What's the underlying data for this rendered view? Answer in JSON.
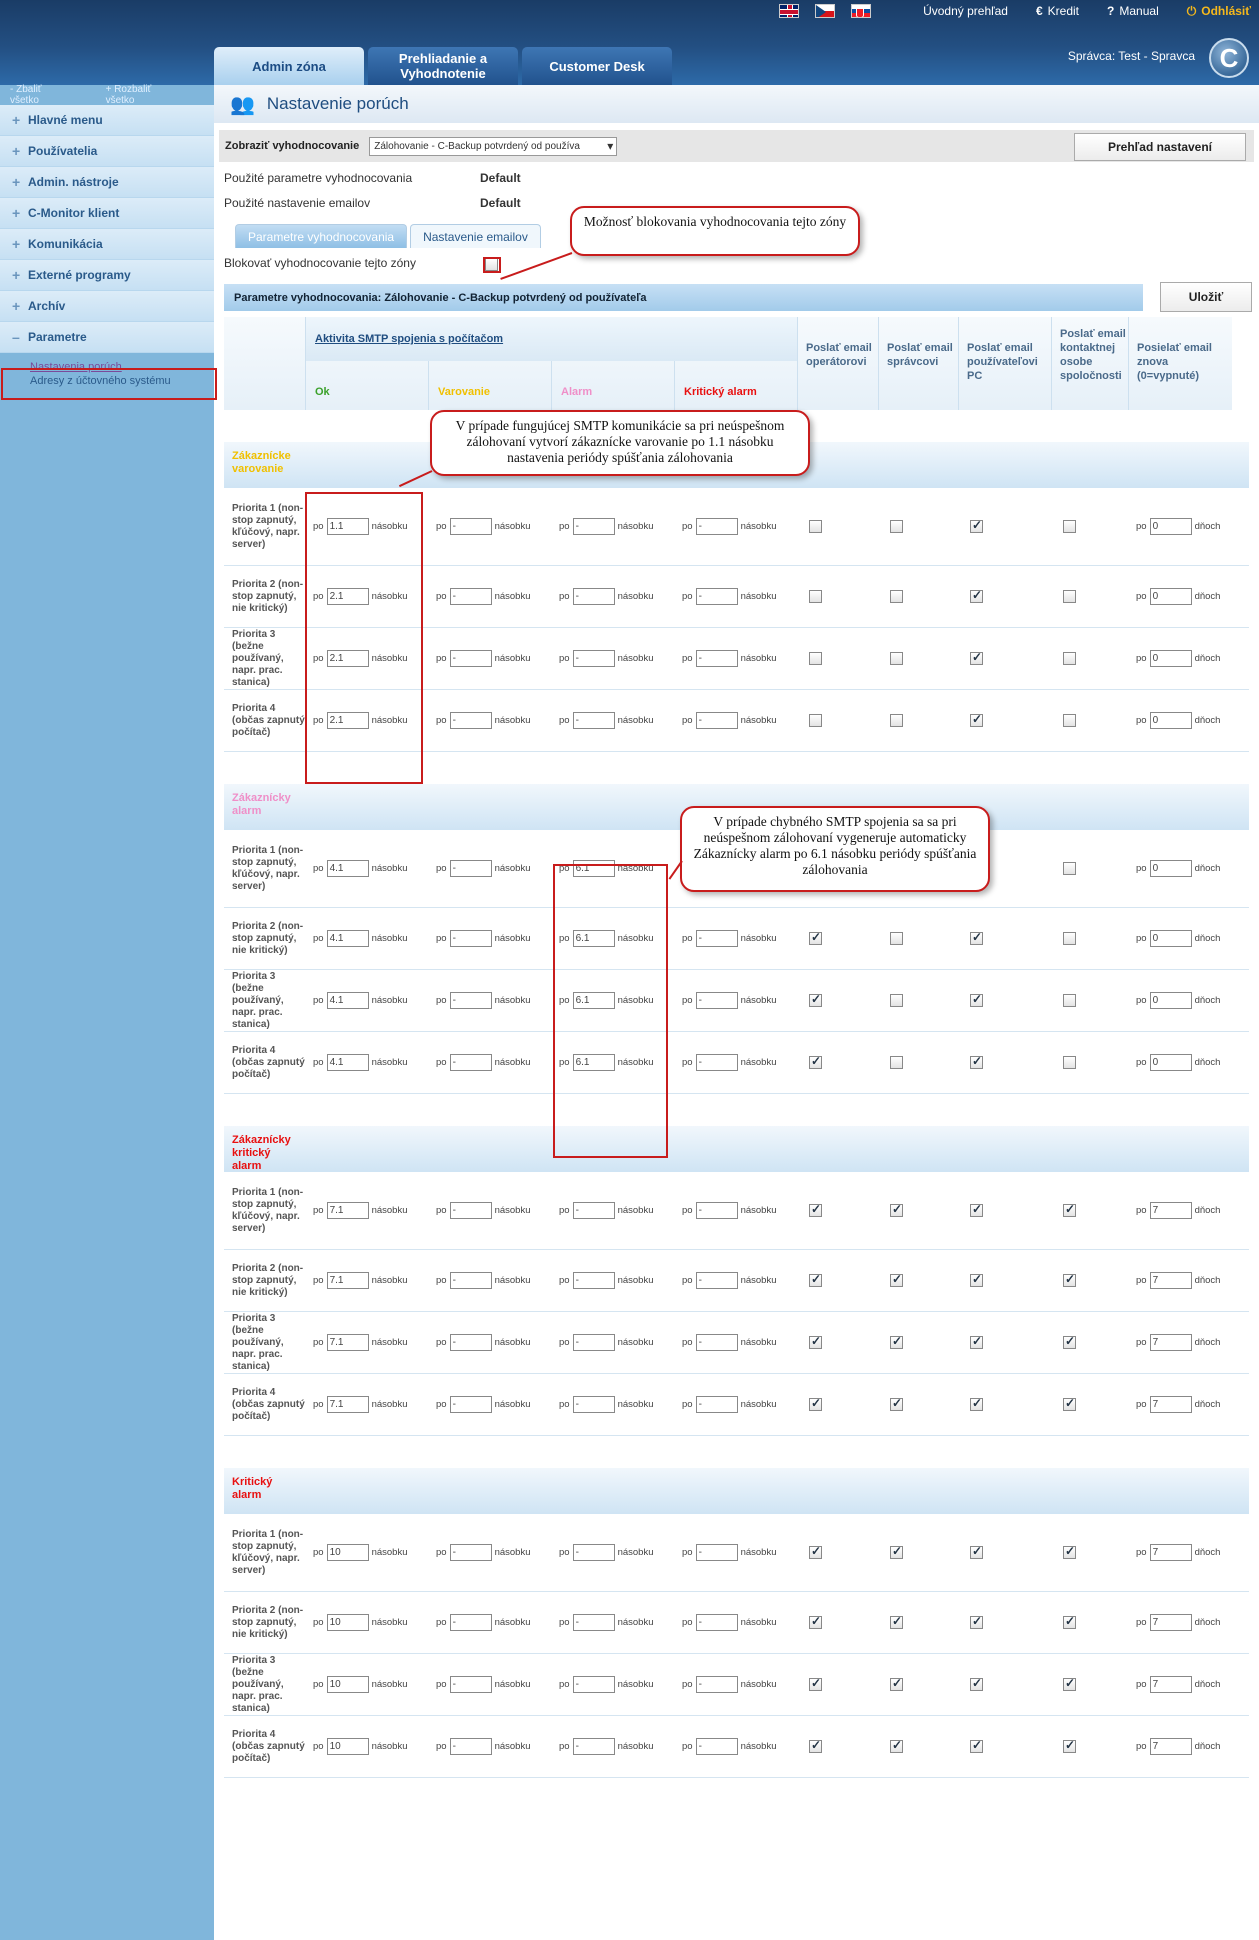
{
  "header": {
    "nav": {
      "home": "Úvodný prehľad",
      "credit": "Kredit",
      "manual": "Manual",
      "logout": "Odhlásiť"
    },
    "tabs": [
      "Admin zóna",
      "Prehliadanie a Vyhodnotenie",
      "Customer Desk"
    ],
    "user": "Správca: Test - Spravca",
    "logo": "C"
  },
  "sidebar": {
    "collapse_all": "Zbaliť všetko",
    "expand_all": "Rozbaliť všetko",
    "items": [
      "Hlavné menu",
      "Používatelia",
      "Admin. nástroje",
      "C-Monitor klient",
      "Komunikácia",
      "Externé programy",
      "Archív",
      "Parametre"
    ],
    "sub": [
      "Nastavenia porúch",
      "Adresy z účtovného systému"
    ]
  },
  "page": {
    "title": "Nastavenie porúch",
    "filter_label": "Zobraziť vyhodnocovanie",
    "filter_value": "Zálohovanie - C-Backup potvrdený od používa",
    "overview_button": "Prehľad nastavení",
    "used_params_label": "Použité parametre vyhodnocovania",
    "used_params_value": "Default",
    "used_email_label": "Použité nastavenie emailov",
    "used_email_value": "Default",
    "subtabs": [
      "Parametre vyhodnocovania",
      "Nastavenie emailov"
    ],
    "block_label": "Blokovať vyhodnocovanie tejto zóny",
    "param_bar": "Parametre vyhodnocovania: Zálohovanie - C-Backup potvrdený od používateľa",
    "save_button": "Uložiť"
  },
  "table": {
    "smtp_title": "Aktivita SMTP spojenia s počítačom",
    "states": [
      {
        "label": "Ok",
        "color": "#3aa12a"
      },
      {
        "label": "Varovanie",
        "color": "#f0c000"
      },
      {
        "label": "Alarm",
        "color": "#ef8fc8"
      },
      {
        "label": "Kritický alarm",
        "color": "#e81010"
      }
    ],
    "mail_cols": [
      "Poslať email operátorovi",
      "Poslať email správcovi",
      "Poslať email používateľovi PC",
      "Poslať email kontaktnej osobe spoločnosti",
      "Posielať email znova (0=vypnuté)"
    ],
    "po": "po",
    "nasobku": "násobku",
    "dnoch": "dňoch",
    "priorities": [
      "Priorita 1 (non-stop zapnutý, kľúčový, napr. server)",
      "Priorita 2 (non-stop zapnutý, nie kritický)",
      "Priorita 3 (bežne používaný, napr. prac. stanica)",
      "Priorita 4 (občas zapnutý počítač)"
    ],
    "sections": [
      {
        "title": "Zákaznícke varovanie",
        "color": "#f0c000",
        "values": [
          [
            "1.1",
            "-",
            "-",
            "-",
            "0"
          ],
          [
            "2.1",
            "-",
            "-",
            "-",
            "0"
          ],
          [
            "2.1",
            "-",
            "-",
            "-",
            "0"
          ],
          [
            "2.1",
            "-",
            "-",
            "-",
            "0"
          ]
        ],
        "checks": [
          [
            false,
            false,
            true,
            false
          ],
          [
            false,
            false,
            true,
            false
          ],
          [
            false,
            false,
            true,
            false
          ],
          [
            false,
            false,
            true,
            false
          ]
        ]
      },
      {
        "title": "Zákaznícky alarm",
        "color": "#ef8fc8",
        "values": [
          [
            "4.1",
            "-",
            "6.1",
            "-",
            "0"
          ],
          [
            "4.1",
            "-",
            "6.1",
            "-",
            "0"
          ],
          [
            "4.1",
            "-",
            "6.1",
            "-",
            "0"
          ],
          [
            "4.1",
            "-",
            "6.1",
            "-",
            "0"
          ]
        ],
        "checks": [
          [
            true,
            false,
            true,
            false
          ],
          [
            true,
            false,
            true,
            false
          ],
          [
            true,
            false,
            true,
            false
          ],
          [
            true,
            false,
            true,
            false
          ]
        ]
      },
      {
        "title": "Zákaznícky kritický alarm",
        "color": "#e81010",
        "values": [
          [
            "7.1",
            "-",
            "-",
            "-",
            "7"
          ],
          [
            "7.1",
            "-",
            "-",
            "-",
            "7"
          ],
          [
            "7.1",
            "-",
            "-",
            "-",
            "7"
          ],
          [
            "7.1",
            "-",
            "-",
            "-",
            "7"
          ]
        ],
        "checks": [
          [
            true,
            true,
            true,
            true
          ],
          [
            true,
            true,
            true,
            true
          ],
          [
            true,
            true,
            true,
            true
          ],
          [
            true,
            true,
            true,
            true
          ]
        ]
      },
      {
        "title": "Kritický alarm",
        "color": "#e81010",
        "values": [
          [
            "10",
            "-",
            "-",
            "-",
            "7"
          ],
          [
            "10",
            "-",
            "-",
            "-",
            "7"
          ],
          [
            "10",
            "-",
            "-",
            "-",
            "7"
          ],
          [
            "10",
            "-",
            "-",
            "-",
            "7"
          ]
        ],
        "checks": [
          [
            true,
            true,
            true,
            true
          ],
          [
            true,
            true,
            true,
            true
          ],
          [
            true,
            true,
            true,
            true
          ],
          [
            true,
            true,
            true,
            true
          ]
        ]
      }
    ]
  },
  "annotations": {
    "block": "Možnosť blokovania vyhodnocovania tejto zóny",
    "smtp_ok": "V prípade fungujúcej SMTP komunikácie sa pri neúspešnom zálohovaní vytvorí zákaznícke varovanie po 1.1 násobku nastavenia periódy spúšťania zálohovania",
    "smtp_err": "V prípade chybného SMTP spojenia sa sa pri neúspešnom zálohovaní vygeneruje automaticky Zákaznícky alarm po 6.1 násobku periódy spúšťania zálohovania"
  }
}
